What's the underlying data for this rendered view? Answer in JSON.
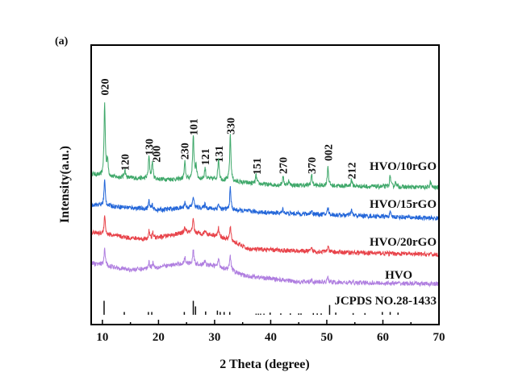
{
  "chart_data": {
    "type": "line",
    "panel_label": "(a)",
    "xlabel": "2 Theta (degree)",
    "ylabel": "Intensity(a.u.)",
    "xlim": [
      8,
      70
    ],
    "ylim": [
      0,
      100
    ],
    "xticks": [
      10,
      20,
      30,
      40,
      50,
      60,
      70
    ],
    "grid": false,
    "series": [
      {
        "name": "HVO/10rGO",
        "color": "#3fa86a",
        "baseline": [
          [
            8,
            54
          ],
          [
            10,
            53
          ],
          [
            20,
            52
          ],
          [
            30,
            52
          ],
          [
            34,
            51
          ],
          [
            40,
            50
          ],
          [
            70,
            49
          ]
        ],
        "peaks": [
          [
            10.4,
            26
          ],
          [
            10.9,
            6
          ],
          [
            14.0,
            3
          ],
          [
            18.3,
            8
          ],
          [
            18.9,
            6
          ],
          [
            24.7,
            6
          ],
          [
            26.2,
            16
          ],
          [
            26.7,
            5
          ],
          [
            28.3,
            4
          ],
          [
            30.7,
            8
          ],
          [
            32.8,
            17
          ],
          [
            37.4,
            3
          ],
          [
            42.2,
            3
          ],
          [
            43.2,
            1.5
          ],
          [
            47.3,
            4
          ],
          [
            50.2,
            7
          ],
          [
            54.4,
            2.5
          ],
          [
            61.3,
            4
          ],
          [
            62.3,
            2
          ],
          [
            68.5,
            2
          ]
        ]
      },
      {
        "name": "HVO/15rGO",
        "color": "#2366d9",
        "baseline": [
          [
            8,
            43
          ],
          [
            20,
            41
          ],
          [
            26,
            42
          ],
          [
            33,
            41
          ],
          [
            40,
            40
          ],
          [
            70,
            38
          ]
        ],
        "peaks": [
          [
            10.4,
            9
          ],
          [
            18.3,
            3
          ],
          [
            18.9,
            1.5
          ],
          [
            24.7,
            2
          ],
          [
            26.2,
            4
          ],
          [
            28.3,
            1.5
          ],
          [
            30.7,
            2
          ],
          [
            32.8,
            8
          ],
          [
            42.2,
            1.5
          ],
          [
            47.3,
            1.5
          ],
          [
            50.2,
            2.5
          ],
          [
            54.4,
            2
          ],
          [
            61.3,
            1.5
          ]
        ]
      },
      {
        "name": "HVO/20rGO",
        "color": "#e8434a",
        "baseline": [
          [
            8,
            33
          ],
          [
            15,
            31
          ],
          [
            18,
            30.5
          ],
          [
            25,
            33
          ],
          [
            30,
            32
          ],
          [
            33,
            30
          ],
          [
            36,
            27
          ],
          [
            50,
            26
          ],
          [
            70,
            25
          ]
        ],
        "peaks": [
          [
            10.4,
            7
          ],
          [
            18.3,
            3
          ],
          [
            19.0,
            2
          ],
          [
            24.7,
            2
          ],
          [
            26.2,
            5
          ],
          [
            28.3,
            1.5
          ],
          [
            30.7,
            3
          ],
          [
            32.8,
            5
          ],
          [
            47.3,
            1
          ],
          [
            50.2,
            2
          ]
        ]
      },
      {
        "name": "HVO",
        "color": "#b07fe0",
        "baseline": [
          [
            8,
            22
          ],
          [
            15,
            19.6
          ],
          [
            18,
            20
          ],
          [
            25,
            22
          ],
          [
            30,
            21
          ],
          [
            33,
            19.5
          ],
          [
            35,
            17.6
          ],
          [
            45,
            15.3
          ],
          [
            70,
            14.5
          ]
        ],
        "peaks": [
          [
            10.4,
            6
          ],
          [
            18.3,
            2.5
          ],
          [
            19.0,
            2
          ],
          [
            24.7,
            2
          ],
          [
            26.2,
            5
          ],
          [
            28.3,
            1.5
          ],
          [
            30.7,
            3
          ],
          [
            32.8,
            5
          ],
          [
            47.3,
            1
          ],
          [
            50.2,
            2
          ]
        ]
      }
    ],
    "reference": {
      "name": "JCPDS NO.28-1433",
      "sticks": [
        [
          10.3,
          5
        ],
        [
          13.9,
          1
        ],
        [
          18.2,
          1
        ],
        [
          18.8,
          1
        ],
        [
          24.6,
          1
        ],
        [
          26.2,
          5
        ],
        [
          26.6,
          3
        ],
        [
          28.4,
          1.2
        ],
        [
          30.5,
          1.5
        ],
        [
          31.0,
          1
        ],
        [
          31.7,
          1
        ],
        [
          32.7,
          1
        ],
        [
          37.4,
          0.4
        ],
        [
          37.8,
          0.4
        ],
        [
          38.2,
          0.4
        ],
        [
          38.8,
          0.4
        ],
        [
          39.9,
          0.8
        ],
        [
          41.8,
          0.5
        ],
        [
          43.5,
          0.5
        ],
        [
          45.0,
          0.5
        ],
        [
          45.4,
          0.5
        ],
        [
          47.6,
          0.6
        ],
        [
          48.3,
          0.5
        ],
        [
          49.0,
          0.5
        ],
        [
          50.5,
          3.5
        ],
        [
          51.6,
          0.8
        ],
        [
          54.7,
          0.6
        ],
        [
          56.8,
          0.6
        ],
        [
          59.9,
          1
        ],
        [
          61.3,
          1
        ],
        [
          62.7,
          0.8
        ]
      ]
    },
    "annotations": [
      {
        "text": "020",
        "x": 10.4,
        "y": 82
      },
      {
        "text": "120",
        "x": 14.0,
        "y": 55
      },
      {
        "text": "130",
        "x": 18.3,
        "y": 60.5
      },
      {
        "text": "200",
        "x": 19.6,
        "y": 58
      },
      {
        "text": "230",
        "x": 24.6,
        "y": 59
      },
      {
        "text": "101",
        "x": 26.2,
        "y": 67.7
      },
      {
        "text": "121",
        "x": 28.3,
        "y": 57
      },
      {
        "text": "131",
        "x": 30.7,
        "y": 58
      },
      {
        "text": "330",
        "x": 32.8,
        "y": 68
      },
      {
        "text": "151",
        "x": 37.5,
        "y": 53.6
      },
      {
        "text": "270",
        "x": 42.2,
        "y": 53.9
      },
      {
        "text": "370",
        "x": 47.3,
        "y": 53.9
      },
      {
        "text": "002",
        "x": 50.2,
        "y": 58.5
      },
      {
        "text": "212",
        "x": 54.4,
        "y": 52
      }
    ]
  }
}
